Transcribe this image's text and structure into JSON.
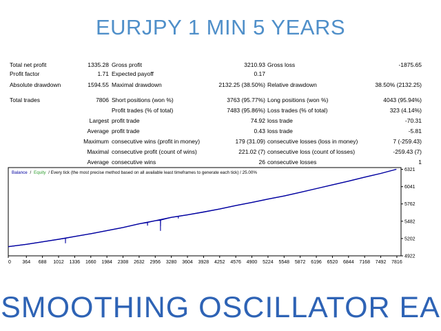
{
  "header": {
    "title": "EURJPY 1 MIN 5 YEARS"
  },
  "footer": {
    "title": "SMOOTHING OSCILLATOR EA"
  },
  "stats": {
    "total_net_profit": {
      "label": "Total net profit",
      "value": "1335.28"
    },
    "gross_profit": {
      "label": "Gross profit",
      "value": "3210.93"
    },
    "gross_loss": {
      "label": "Gross loss",
      "value": "-1875.65"
    },
    "profit_factor": {
      "label": "Profit factor",
      "value": "1.71"
    },
    "expected_payoff": {
      "label": "Expected payoff",
      "value": "0.17"
    },
    "absolute_drawdown": {
      "label": "Absolute drawdown",
      "value": "1594.55"
    },
    "maximal_drawdown": {
      "label": "Maximal drawdown",
      "value": "2132.25 (38.50%)"
    },
    "relative_drawdown": {
      "label": "Relative drawdown",
      "value": "38.50% (2132.25)"
    },
    "total_trades": {
      "label": "Total trades",
      "value": "7806"
    },
    "short_positions": {
      "label": "Short positions (won %)",
      "value": "3763 (95.77%)"
    },
    "long_positions": {
      "label": "Long positions (won %)",
      "value": "4043 (95.94%)"
    },
    "profit_trades": {
      "label": "Profit trades (% of total)",
      "value": "7483 (95.86%)"
    },
    "loss_trades": {
      "label": "Loss trades (% of total)",
      "value": "323 (4.14%)"
    },
    "largest": {
      "label": "Largest",
      "profit_label": "profit trade",
      "profit_value": "74.92",
      "loss_label": "loss trade",
      "loss_value": "-70.31"
    },
    "average": {
      "label": "Average",
      "profit_label": "profit trade",
      "profit_value": "0.43",
      "loss_label": "loss trade",
      "loss_value": "-5.81"
    },
    "maximum": {
      "label": "Maximum",
      "wins_label": "consecutive wins (profit in money)",
      "wins_value": "179 (31.09)",
      "losses_label": "consecutive losses (loss in money)",
      "losses_value": "7 (-259.43)"
    },
    "maximal": {
      "label": "Maximal",
      "profit_label": "consecutive profit (count of wins)",
      "profit_value": "221.02 (7)",
      "loss_label": "consecutive loss (count of losses)",
      "loss_value": "-259.43 (7)"
    },
    "average_consecutive": {
      "label": "Average",
      "wins_label": "consecutive wins",
      "wins_value": "26",
      "losses_label": "consecutive losses",
      "losses_value": "1"
    }
  },
  "chart_data": {
    "type": "line",
    "legend_balance": "Balance",
    "legend_separator": "/",
    "legend_equity": "Equity",
    "legend_rest": "/ Every tick (the most precise method based on all available least timeframes to generate each tick) / 25.00%",
    "x_ticks": [
      "0",
      "364",
      "688",
      "1012",
      "1336",
      "1660",
      "1984",
      "2308",
      "2632",
      "2956",
      "3280",
      "3604",
      "3928",
      "4252",
      "4576",
      "4900",
      "5224",
      "5548",
      "5872",
      "6196",
      "6520",
      "6844",
      "7168",
      "7492",
      "7816"
    ],
    "x_tick_values": [
      0,
      364,
      688,
      1012,
      1336,
      1660,
      1984,
      2308,
      2632,
      2956,
      3280,
      3604,
      3928,
      4252,
      4576,
      4900,
      5224,
      5548,
      5872,
      6196,
      6520,
      6844,
      7168,
      7492,
      7816
    ],
    "y_ticks": [
      "6321",
      "6041",
      "5762",
      "5482",
      "5202",
      "4922"
    ],
    "y_tick_values": [
      6321,
      6041,
      5762,
      5482,
      5202,
      4922
    ],
    "xlim": [
      0,
      7900
    ],
    "ylim": [
      4922,
      6350
    ],
    "colors": {
      "balance": "#0000a0",
      "equity": "#2e9e2e",
      "frame": "#000000",
      "grid": "#c8c8c8"
    },
    "series": [
      {
        "name": "Balance",
        "x": [
          0,
          364,
          688,
          1012,
          1336,
          1660,
          1984,
          2308,
          2632,
          2956,
          3280,
          3604,
          3928,
          4252,
          4576,
          4900,
          5224,
          5548,
          5872,
          6196,
          6520,
          6844,
          7168,
          7492,
          7806
        ],
        "values": [
          5070,
          5108,
          5148,
          5190,
          5235,
          5280,
          5330,
          5380,
          5440,
          5490,
          5545,
          5585,
          5630,
          5680,
          5735,
          5785,
          5840,
          5890,
          5950,
          6010,
          6070,
          6130,
          6195,
          6255,
          6322
        ]
      },
      {
        "name": "Equity",
        "x": [
          0,
          364,
          688,
          1012,
          1150,
          1151,
          1152,
          1336,
          1660,
          1984,
          2308,
          2632,
          2800,
          2801,
          2802,
          2956,
          3060,
          3061,
          3062,
          3063,
          3064,
          3280,
          3420,
          3421,
          3422,
          3604,
          4252,
          4576,
          4900,
          5224,
          5548,
          5872,
          6196,
          6520,
          6844,
          7168,
          7492,
          7806
        ],
        "values": [
          5070,
          5108,
          5148,
          5190,
          5205,
          5130,
          5207,
          5235,
          5280,
          5330,
          5380,
          5440,
          5460,
          5415,
          5462,
          5490,
          5498,
          5330,
          5440,
          5400,
          5500,
          5545,
          5560,
          5530,
          5562,
          5585,
          5680,
          5735,
          5785,
          5840,
          5890,
          5950,
          6010,
          6070,
          6130,
          6195,
          6255,
          6322
        ]
      }
    ]
  }
}
